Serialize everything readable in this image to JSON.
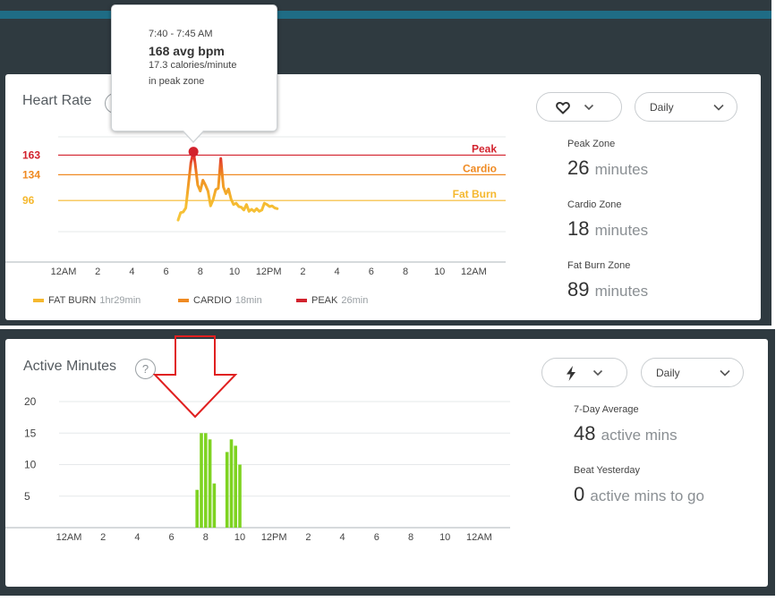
{
  "heart_rate": {
    "title": "Heart Rate",
    "help": "?",
    "metric_icon": "heart-icon",
    "period": "Daily",
    "tooltip": {
      "time": "7:40 - 7:45 AM",
      "bpm": "168 avg bpm",
      "calories": "17.3 calories/minute",
      "zone": "in peak zone"
    },
    "stats": [
      {
        "label": "Peak Zone",
        "value": "26",
        "unit": "minutes"
      },
      {
        "label": "Cardio Zone",
        "value": "18",
        "unit": "minutes"
      },
      {
        "label": "Fat Burn Zone",
        "value": "89",
        "unit": "minutes"
      }
    ],
    "legend": [
      {
        "name": "FAT BURN",
        "duration": "1hr29min",
        "color": "#f5b82e"
      },
      {
        "name": "CARDIO",
        "duration": "18min",
        "color": "#ef8a22"
      },
      {
        "name": "PEAK",
        "duration": "26min",
        "color": "#d2222d"
      }
    ]
  },
  "active_minutes": {
    "title": "Active Minutes",
    "help": "?",
    "metric_icon": "lightning-icon",
    "period": "Daily",
    "stats": [
      {
        "label": "7-Day Average",
        "value": "48",
        "unit": "active mins"
      },
      {
        "label": "Beat Yesterday",
        "value": "0",
        "unit": "active mins to go"
      }
    ]
  },
  "colors": {
    "peak": "#d2222d",
    "cardio": "#ef8a22",
    "fat_burn": "#f5b82e",
    "active_bar": "#7ed321",
    "annotation_arrow": "#e02020"
  },
  "chart_data": [
    {
      "type": "line",
      "x_tick_labels": [
        "12AM",
        "2",
        "4",
        "6",
        "8",
        "10",
        "12PM",
        "2",
        "4",
        "6",
        "8",
        "10",
        "12AM"
      ],
      "zones": [
        {
          "name": "Peak",
          "value": 163,
          "color": "#d2222d"
        },
        {
          "name": "Cardio",
          "value": 134,
          "color": "#ef8a22"
        },
        {
          "name": "Fat Burn",
          "value": 96,
          "color": "#f5b82e"
        }
      ],
      "ylim": [
        50,
        190
      ],
      "series": [
        {
          "x": [
            6.7,
            6.85,
            7.0,
            7.15,
            7.3,
            7.45,
            7.6,
            7.7,
            7.85,
            8.0,
            8.15,
            8.3,
            8.45,
            8.6,
            8.75,
            8.9,
            9.05,
            9.2,
            9.35,
            9.5,
            9.65,
            9.8,
            9.95,
            10.1,
            10.25,
            10.4,
            10.55,
            10.7,
            10.85,
            11.0,
            11.15,
            11.3,
            11.45,
            11.6,
            11.75,
            11.9,
            12.05,
            12.2,
            12.35,
            12.5
          ],
          "y": [
            67,
            78,
            79,
            85,
            118,
            152,
            168,
            150,
            119,
            110,
            126,
            119,
            110,
            88,
            97,
            112,
            114,
            158,
            116,
            106,
            113,
            98,
            90,
            92,
            87,
            86,
            82,
            90,
            80,
            83,
            80,
            84,
            80,
            82,
            92,
            90,
            87,
            88,
            85,
            84
          ]
        }
      ],
      "highlight_point": {
        "x": 7.6,
        "y": 168
      }
    },
    {
      "type": "bar",
      "x_tick_labels": [
        "12AM",
        "2",
        "4",
        "6",
        "8",
        "10",
        "12PM",
        "2",
        "4",
        "6",
        "8",
        "10",
        "12AM"
      ],
      "y_tick_labels": [
        "5",
        "10",
        "15",
        "20"
      ],
      "ylim": [
        0,
        20
      ],
      "bars": [
        {
          "x": 7.5,
          "value": 6
        },
        {
          "x": 7.75,
          "value": 15
        },
        {
          "x": 8.0,
          "value": 15
        },
        {
          "x": 8.25,
          "value": 14
        },
        {
          "x": 8.5,
          "value": 7
        },
        {
          "x": 9.25,
          "value": 12
        },
        {
          "x": 9.5,
          "value": 14
        },
        {
          "x": 9.75,
          "value": 13
        },
        {
          "x": 10.0,
          "value": 10
        }
      ]
    }
  ]
}
